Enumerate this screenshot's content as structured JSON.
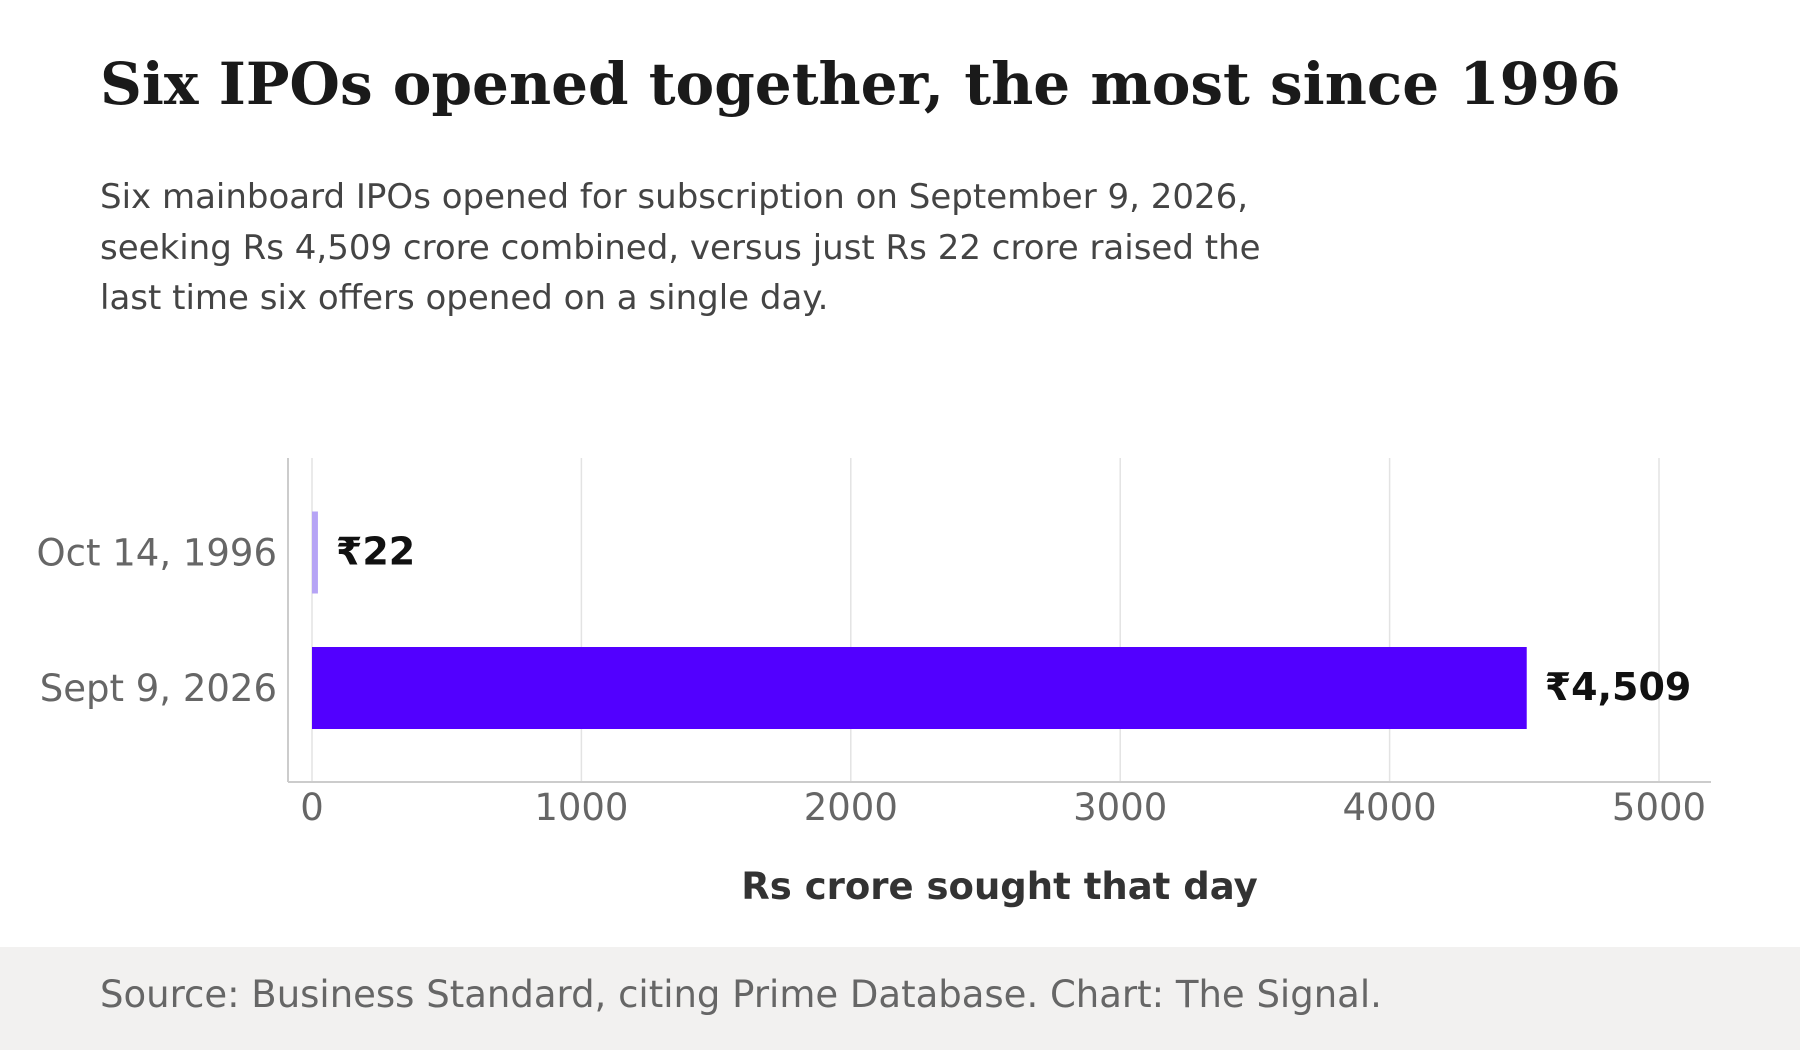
{
  "title": "Six IPOs opened together, the most since 1996",
  "subtitle": [
    "Six mainboard IPOs opened for subscription on September 9, 2026,",
    "seeking Rs 4,509 crore combined, versus just Rs 22 crore raised the",
    "last time six offers opened on a single day."
  ],
  "source": "Source: Business Standard, citing Prime Database. Chart: The Signal.",
  "chart_data": {
    "type": "bar",
    "orientation": "horizontal",
    "categories": [
      "Oct 14, 1996",
      "Sept 9, 2026"
    ],
    "values": [
      22,
      4509
    ],
    "data_labels": [
      "₹22",
      "₹4,509"
    ],
    "xlabel": "Rs crore sought that day",
    "ylabel": "",
    "xlim": [
      0,
      5000
    ],
    "xticks": [
      0,
      1000,
      2000,
      3000,
      4000,
      5000
    ],
    "grid": "vertical",
    "legend": "none",
    "colors": [
      "#b6a4f5",
      "#5200ff"
    ]
  }
}
